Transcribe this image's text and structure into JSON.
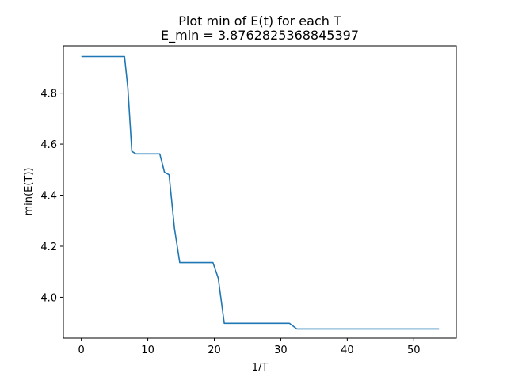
{
  "chart_data": {
    "type": "line",
    "title": "Plot min of E(t) for each T",
    "subtitle": "E_min = 3.8762825368845397",
    "xlabel": "1/T",
    "ylabel": "min(E(T))",
    "xlim": [
      -2.7,
      56.4
    ],
    "ylim": [
      3.84,
      4.985
    ],
    "xticks": [
      0,
      10,
      20,
      30,
      40,
      50
    ],
    "yticks": [
      4.0,
      4.2,
      4.4,
      4.6,
      4.8
    ],
    "xtick_labels": [
      "0",
      "10",
      "20",
      "30",
      "40",
      "50"
    ],
    "ytick_labels": [
      "4.0",
      "4.2",
      "4.4",
      "4.6",
      "4.8"
    ],
    "grid": false,
    "series": [
      {
        "color": "#1f77b4",
        "x": [
          0,
          6.5,
          7.0,
          7.6,
          8.2,
          11.8,
          12.5,
          13.2,
          14.0,
          14.8,
          19.8,
          20.6,
          21.5,
          31.3,
          32.4,
          53.8
        ],
        "y": [
          4.943,
          4.943,
          4.82,
          4.572,
          4.562,
          4.562,
          4.49,
          4.48,
          4.27,
          4.136,
          4.136,
          4.075,
          3.898,
          3.898,
          3.876,
          3.876
        ]
      }
    ]
  }
}
